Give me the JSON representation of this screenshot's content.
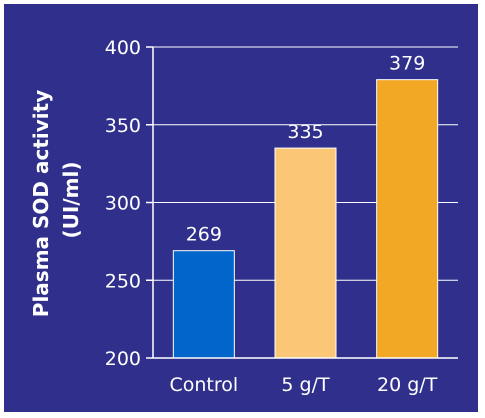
{
  "chart_data": {
    "type": "bar",
    "categories": [
      "Control",
      "5 g/T",
      "20 g/T"
    ],
    "values": [
      269,
      335,
      379
    ],
    "data_labels": [
      "269",
      "335",
      "379"
    ],
    "ylabel_lines": [
      "Plasma SOD activity",
      "(UI/ml)"
    ],
    "ylim": [
      200,
      400
    ],
    "yticks": [
      200,
      250,
      300,
      350,
      400
    ],
    "ytick_labels": [
      "200",
      "250",
      "300",
      "350",
      "400"
    ],
    "grid": true,
    "colors": {
      "background": "#30308c",
      "bars": [
        "#0066cc",
        "#fbc777",
        "#f2a824"
      ],
      "axis": "#ffffff",
      "text": "#ffffff"
    }
  }
}
